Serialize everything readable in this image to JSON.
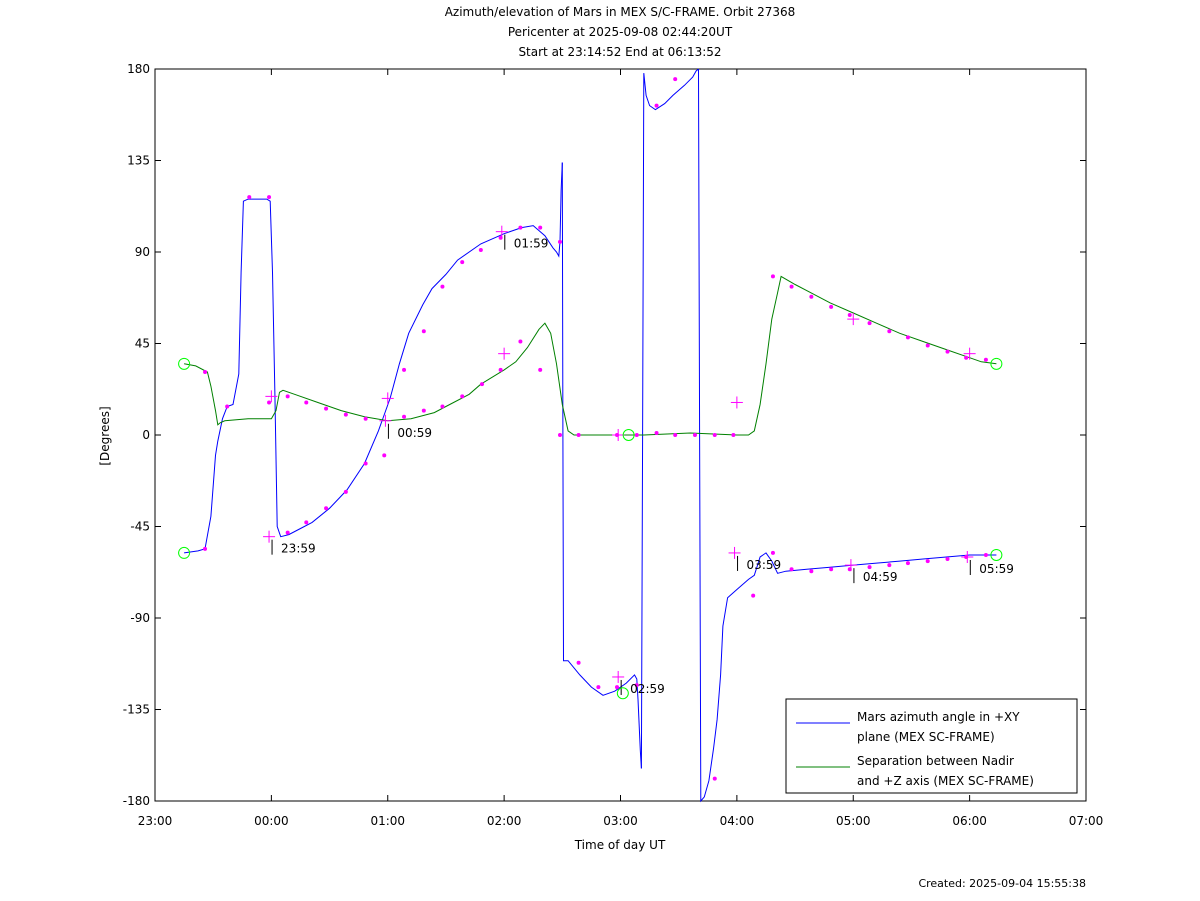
{
  "titles": {
    "line1": "Azimuth/elevation of Mars in MEX S/C-FRAME.  Orbit 27368",
    "line2": "Pericenter at 2025-09-08 02:44:20UT",
    "line3": "Start at 23:14:52 End at 06:13:52"
  },
  "footer": "Created: 2025-09-04 15:55:38",
  "colors": {
    "azimuth": "#0000ff",
    "separation": "#008000",
    "marker": "#ff00ff",
    "endpoint": "#00ff00",
    "axis": "#000000"
  },
  "chart_data": {
    "type": "line",
    "title": "Azimuth/elevation of Mars in MEX S/C-FRAME.  Orbit 27368",
    "xlabel": "Time of day UT",
    "ylabel": "[Degrees]",
    "xlim": [
      0,
      8
    ],
    "ylim": [
      -180,
      180
    ],
    "grid": false,
    "legend_placement": "bottom-right",
    "x_tick_labels": [
      "23:00",
      "00:00",
      "01:00",
      "02:00",
      "03:00",
      "04:00",
      "05:00",
      "06:00",
      "07:00"
    ],
    "y_ticks": [
      -180,
      -135,
      -90,
      -45,
      0,
      45,
      90,
      135,
      180
    ],
    "x_unit": "hours after 23:00 UT",
    "series": [
      {
        "name": "Mars azimuth angle in +XY plane (MEX SC-FRAME)",
        "legend_lines": [
          "Mars azimuth angle in +XY",
          "plane (MEX SC-FRAME)"
        ],
        "color": "#0000ff",
        "segments": [
          [
            [
              0.25,
              -58
            ],
            [
              0.37,
              -57
            ],
            [
              0.43,
              -56
            ],
            [
              0.48,
              -40
            ],
            [
              0.52,
              -10
            ],
            [
              0.54,
              -3
            ],
            [
              0.58,
              8
            ],
            [
              0.62,
              14
            ],
            [
              0.67,
              15
            ],
            [
              0.72,
              30
            ],
            [
              0.74,
              80
            ],
            [
              0.76,
              115
            ],
            [
              0.8,
              116
            ],
            [
              0.9,
              116
            ],
            [
              0.96,
              116
            ],
            [
              0.99,
              115
            ],
            [
              1.01,
              80
            ],
            [
              1.03,
              20
            ],
            [
              1.05,
              -45
            ],
            [
              1.08,
              -50
            ],
            [
              1.15,
              -49
            ],
            [
              1.25,
              -46
            ],
            [
              1.35,
              -43
            ],
            [
              1.5,
              -36
            ],
            [
              1.65,
              -27
            ],
            [
              1.8,
              -14
            ],
            [
              1.92,
              2
            ],
            [
              2.02,
              18
            ],
            [
              2.1,
              35
            ],
            [
              2.18,
              50
            ],
            [
              2.3,
              64
            ],
            [
              2.38,
              72
            ],
            [
              2.5,
              79
            ],
            [
              2.6,
              86
            ],
            [
              2.8,
              94
            ],
            [
              3.0,
              99
            ],
            [
              3.15,
              102
            ],
            [
              3.25,
              103
            ],
            [
              3.35,
              98
            ],
            [
              3.42,
              92
            ],
            [
              3.45,
              90
            ],
            [
              3.47,
              88
            ],
            [
              3.48,
              95
            ],
            [
              3.49,
              120
            ],
            [
              3.5,
              134
            ]
          ],
          [
            [
              3.5,
              134
            ],
            [
              3.505,
              0
            ],
            [
              3.51,
              -111
            ],
            [
              3.55,
              -111
            ],
            [
              3.65,
              -118
            ],
            [
              3.75,
              -124
            ],
            [
              3.85,
              -128
            ],
            [
              3.95,
              -126
            ],
            [
              4.05,
              -122
            ],
            [
              4.12,
              -118
            ],
            [
              4.14,
              -120
            ],
            [
              4.15,
              -130
            ],
            [
              4.17,
              -155
            ],
            [
              4.18,
              -164
            ]
          ],
          [
            [
              4.18,
              -164
            ],
            [
              4.19,
              0
            ],
            [
              4.2,
              178
            ],
            [
              4.22,
              167
            ],
            [
              4.25,
              162
            ],
            [
              4.3,
              160
            ],
            [
              4.38,
              163
            ],
            [
              4.45,
              167
            ],
            [
              4.55,
              172
            ],
            [
              4.62,
              176
            ],
            [
              4.65,
              179
            ],
            [
              4.67,
              180
            ]
          ],
          [
            [
              4.67,
              180
            ],
            [
              4.68,
              0
            ],
            [
              4.69,
              -180
            ],
            [
              4.72,
              -178
            ],
            [
              4.76,
              -170
            ],
            [
              4.8,
              -154
            ],
            [
              4.83,
              -140
            ],
            [
              4.86,
              -118
            ],
            [
              4.88,
              -94
            ],
            [
              4.92,
              -80
            ],
            [
              5.0,
              -76
            ],
            [
              5.1,
              -71
            ],
            [
              5.15,
              -69
            ],
            [
              5.2,
              -60
            ],
            [
              5.25,
              -58
            ],
            [
              5.3,
              -62
            ],
            [
              5.35,
              -68
            ],
            [
              5.42,
              -67
            ],
            [
              5.6,
              -66
            ],
            [
              5.8,
              -65
            ],
            [
              6.0,
              -64
            ],
            [
              6.2,
              -63
            ],
            [
              6.4,
              -62
            ],
            [
              6.6,
              -61
            ],
            [
              6.8,
              -60
            ],
            [
              7.0,
              -59
            ],
            [
              7.08,
              -59
            ],
            [
              7.23,
              -59
            ]
          ]
        ]
      },
      {
        "name": "Separation between Nadir and +Z axis (MEX SC-FRAME)",
        "legend_lines": [
          "Separation between Nadir",
          "and +Z axis (MEX SC-FRAME)"
        ],
        "color": "#008000",
        "segments": [
          [
            [
              0.25,
              35
            ],
            [
              0.35,
              34
            ],
            [
              0.45,
              31
            ],
            [
              0.48,
              24
            ],
            [
              0.52,
              12
            ],
            [
              0.54,
              5
            ],
            [
              0.56,
              6
            ],
            [
              0.6,
              7
            ],
            [
              0.8,
              8
            ],
            [
              1.0,
              8
            ],
            [
              1.04,
              12
            ],
            [
              1.07,
              21
            ],
            [
              1.1,
              22
            ],
            [
              1.2,
              20
            ],
            [
              1.4,
              16
            ],
            [
              1.6,
              12
            ],
            [
              1.8,
              9
            ],
            [
              2.0,
              7
            ],
            [
              2.2,
              8
            ],
            [
              2.4,
              11
            ],
            [
              2.5,
              14
            ],
            [
              2.7,
              20
            ],
            [
              2.8,
              25
            ],
            [
              3.0,
              32
            ],
            [
              3.1,
              36
            ],
            [
              3.2,
              43
            ],
            [
              3.3,
              52
            ],
            [
              3.35,
              55
            ],
            [
              3.4,
              50
            ],
            [
              3.45,
              35
            ],
            [
              3.5,
              15
            ],
            [
              3.55,
              2
            ],
            [
              3.6,
              0
            ],
            [
              3.8,
              0
            ],
            [
              4.0,
              0
            ],
            [
              4.2,
              0
            ],
            [
              4.4,
              0.5
            ],
            [
              4.6,
              1
            ],
            [
              4.8,
              0.5
            ],
            [
              5.0,
              0
            ],
            [
              5.1,
              0
            ],
            [
              5.15,
              2
            ],
            [
              5.2,
              15
            ],
            [
              5.25,
              35
            ],
            [
              5.3,
              57
            ],
            [
              5.35,
              70
            ],
            [
              5.38,
              78
            ],
            [
              5.5,
              74
            ],
            [
              5.6,
              71
            ],
            [
              5.8,
              65
            ],
            [
              6.0,
              60
            ],
            [
              6.2,
              55
            ],
            [
              6.4,
              50
            ],
            [
              6.6,
              46
            ],
            [
              6.8,
              42
            ],
            [
              7.0,
              38
            ],
            [
              7.1,
              36
            ],
            [
              7.23,
              35
            ]
          ]
        ]
      }
    ],
    "markers": {
      "azimuth_dots": [
        [
          0.43,
          -56
        ],
        [
          0.62,
          14
        ],
        [
          0.81,
          117
        ],
        [
          0.98,
          117
        ],
        [
          1.14,
          -48
        ],
        [
          1.3,
          -43
        ],
        [
          1.47,
          -36
        ],
        [
          1.64,
          -28
        ],
        [
          1.81,
          -14
        ],
        [
          1.97,
          -10
        ],
        [
          2.14,
          32
        ],
        [
          2.31,
          51
        ],
        [
          2.47,
          73
        ],
        [
          2.64,
          85
        ],
        [
          2.8,
          91
        ],
        [
          2.97,
          97
        ],
        [
          3.14,
          102
        ],
        [
          3.31,
          102
        ],
        [
          3.48,
          95
        ],
        [
          3.64,
          -112
        ],
        [
          3.81,
          -124
        ],
        [
          3.97,
          -124
        ],
        [
          4.14,
          -123
        ],
        [
          4.31,
          162
        ],
        [
          4.47,
          175
        ],
        [
          4.81,
          -169
        ],
        [
          5.14,
          -79
        ],
        [
          5.31,
          -58
        ],
        [
          5.47,
          -66
        ],
        [
          5.64,
          -67
        ],
        [
          5.81,
          -66
        ],
        [
          5.97,
          -66
        ],
        [
          6.14,
          -65
        ],
        [
          6.31,
          -64
        ],
        [
          6.47,
          -63
        ],
        [
          6.64,
          -62
        ],
        [
          6.81,
          -61
        ],
        [
          6.97,
          -60
        ],
        [
          7.14,
          -59
        ]
      ],
      "separation_dots": [
        [
          0.43,
          31
        ],
        [
          0.98,
          16
        ],
        [
          1.14,
          19
        ],
        [
          1.3,
          16
        ],
        [
          1.47,
          13
        ],
        [
          1.64,
          10
        ],
        [
          1.81,
          8
        ],
        [
          2.14,
          9
        ],
        [
          2.31,
          12
        ],
        [
          2.47,
          14
        ],
        [
          2.64,
          19
        ],
        [
          2.81,
          25
        ],
        [
          2.97,
          32
        ],
        [
          3.14,
          46
        ],
        [
          3.31,
          32
        ],
        [
          3.48,
          0
        ],
        [
          3.64,
          0
        ],
        [
          3.97,
          0
        ],
        [
          4.14,
          0
        ],
        [
          4.31,
          1
        ],
        [
          4.47,
          0
        ],
        [
          4.64,
          0
        ],
        [
          4.81,
          0
        ],
        [
          4.97,
          0
        ],
        [
          5.31,
          78
        ],
        [
          5.47,
          73
        ],
        [
          5.64,
          68
        ],
        [
          5.81,
          63
        ],
        [
          5.97,
          59
        ],
        [
          6.14,
          55
        ],
        [
          6.31,
          51
        ],
        [
          6.47,
          48
        ],
        [
          6.64,
          44
        ],
        [
          6.81,
          41
        ],
        [
          6.97,
          38
        ],
        [
          7.14,
          37
        ]
      ],
      "hourly_crosses": [
        {
          "x": 0.98,
          "y": -50,
          "label": "23:59"
        },
        {
          "x": 1.98,
          "y": 7,
          "label": "00:59"
        },
        {
          "x": 2.98,
          "y": 100,
          "label": "01:59"
        },
        {
          "x": 3.98,
          "y": -119,
          "label": "02:59"
        },
        {
          "x": 4.98,
          "y": -58,
          "label": "03:59"
        },
        {
          "x": 5.98,
          "y": -64,
          "label": "04:59"
        },
        {
          "x": 6.98,
          "y": -60,
          "label": "05:59"
        }
      ],
      "extra_crosses": [
        [
          1.0,
          19
        ],
        [
          2.0,
          18
        ],
        [
          3.0,
          40
        ],
        [
          3.98,
          0
        ],
        [
          5.0,
          16
        ],
        [
          6.0,
          57
        ],
        [
          7.0,
          40
        ]
      ],
      "endpoint_circles": [
        [
          0.25,
          -58
        ],
        [
          0.25,
          35
        ],
        [
          7.23,
          -59
        ],
        [
          7.23,
          35
        ],
        [
          4.07,
          0
        ],
        [
          4.02,
          -127
        ]
      ]
    }
  }
}
